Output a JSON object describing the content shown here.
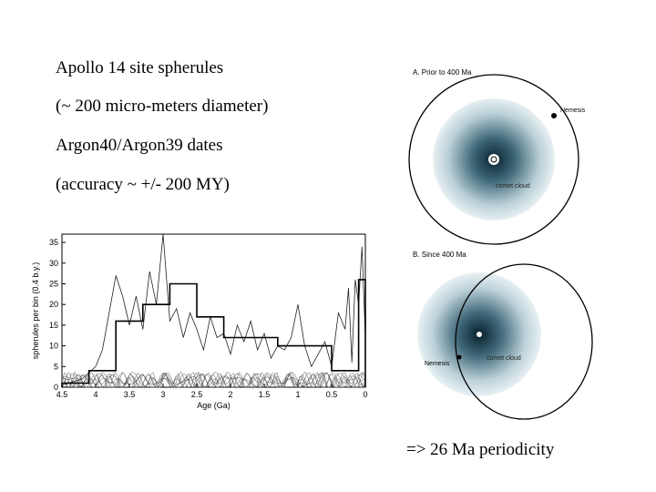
{
  "slide": {
    "lines": [
      "Apollo 14 site spherules",
      "(~ 200 micro-meters diameter)",
      "Argon40/Argon39 dates",
      "(accuracy ~ +/- 200 MY)"
    ],
    "footer": "=> 26 Ma periodicity"
  },
  "orbit_diagram": {
    "panel_a_title": "A. Prior to 400 Ma",
    "panel_b_title": "B. Since 400 Ma",
    "nemesis_label": "Nemesis",
    "comet_cloud_label": "comet cloud",
    "cloud_color": "#1f4656"
  },
  "chart_data": {
    "type": "line",
    "xlabel": "Age (Ga)",
    "ylabel": "spherules per bin (0.4 b.y.)",
    "xlim": [
      4.5,
      0
    ],
    "ylim": [
      0,
      37
    ],
    "x_ticks": [
      "4.5",
      "4",
      "3.5",
      "3",
      "2.5",
      "2",
      "1.5",
      "1",
      "0.5",
      "0"
    ],
    "y_ticks": [
      "0",
      "5",
      "10",
      "15",
      "20",
      "25",
      "30",
      "35"
    ],
    "series": [
      {
        "kind": "histogram",
        "x": [
          4.5,
          4.1,
          3.7,
          3.3,
          2.9,
          2.5,
          2.1,
          1.7,
          1.3,
          0.9,
          0.5,
          0.1,
          0
        ],
        "y": [
          1,
          4,
          16,
          20,
          25,
          17,
          12,
          12,
          10,
          10,
          4,
          26,
          26
        ]
      },
      {
        "kind": "density",
        "x": [
          4.5,
          4.2,
          4.0,
          3.9,
          3.8,
          3.7,
          3.6,
          3.5,
          3.4,
          3.3,
          3.2,
          3.1,
          3.0,
          2.9,
          2.8,
          2.7,
          2.6,
          2.5,
          2.4,
          2.3,
          2.2,
          2.1,
          2.0,
          1.9,
          1.8,
          1.7,
          1.6,
          1.5,
          1.4,
          1.3,
          1.2,
          1.1,
          1.0,
          0.9,
          0.8,
          0.7,
          0.6,
          0.5,
          0.4,
          0.3,
          0.25,
          0.2,
          0.15,
          0.1,
          0.05,
          0
        ],
        "y": [
          0.5,
          2,
          5,
          9,
          18,
          27,
          22,
          15,
          22,
          14,
          28,
          20,
          37,
          16,
          19,
          12,
          18,
          14,
          9,
          17,
          12,
          13,
          8,
          15,
          11,
          16,
          9,
          13,
          7,
          10,
          9,
          12,
          20,
          10,
          5,
          8,
          11,
          5,
          18,
          14,
          24,
          6,
          26,
          20,
          34,
          12
        ]
      }
    ]
  }
}
